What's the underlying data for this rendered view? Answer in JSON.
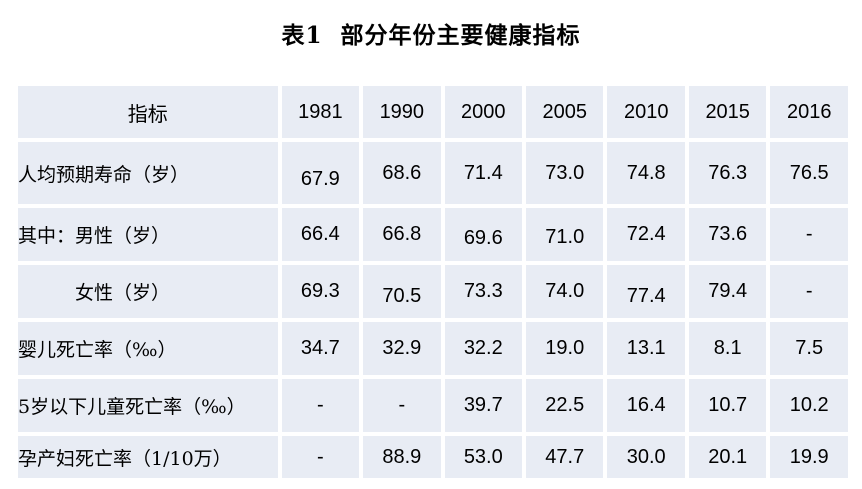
{
  "title": "表1  部分年份主要健康指标",
  "colors": {
    "cell_background": "#e8ecf4",
    "page_background": "#ffffff",
    "text": "#000000"
  },
  "table": {
    "header": [
      "指标",
      "1981",
      "1990",
      "2000",
      "2005",
      "2010",
      "2015",
      "2016"
    ],
    "rows": [
      {
        "label": "人均预期寿命（岁）",
        "values": [
          "67.9",
          "68.6",
          "71.4",
          "73.0",
          "74.8",
          "76.3",
          "76.5"
        ]
      },
      {
        "label": "其中：男性（岁）",
        "values": [
          "66.4",
          "66.8",
          "69.6",
          "71.0",
          "72.4",
          "73.6",
          "-"
        ]
      },
      {
        "label": "　　　女性（岁）",
        "values": [
          "69.3",
          "70.5",
          "73.3",
          "74.0",
          "77.4",
          "79.4",
          "-"
        ]
      },
      {
        "label": "婴儿死亡率（‰）",
        "values": [
          "34.7",
          "32.9",
          "32.2",
          "19.0",
          "13.1",
          "8.1",
          "7.5"
        ]
      },
      {
        "label": "5岁以下儿童死亡率（‰）",
        "values": [
          "-",
          "-",
          "39.7",
          "22.5",
          "16.4",
          "10.7",
          "10.2"
        ]
      },
      {
        "label": "孕产妇死亡率（1/10万）",
        "values": [
          "-",
          "88.9",
          "53.0",
          "47.7",
          "30.0",
          "20.1",
          "19.9"
        ]
      }
    ]
  }
}
